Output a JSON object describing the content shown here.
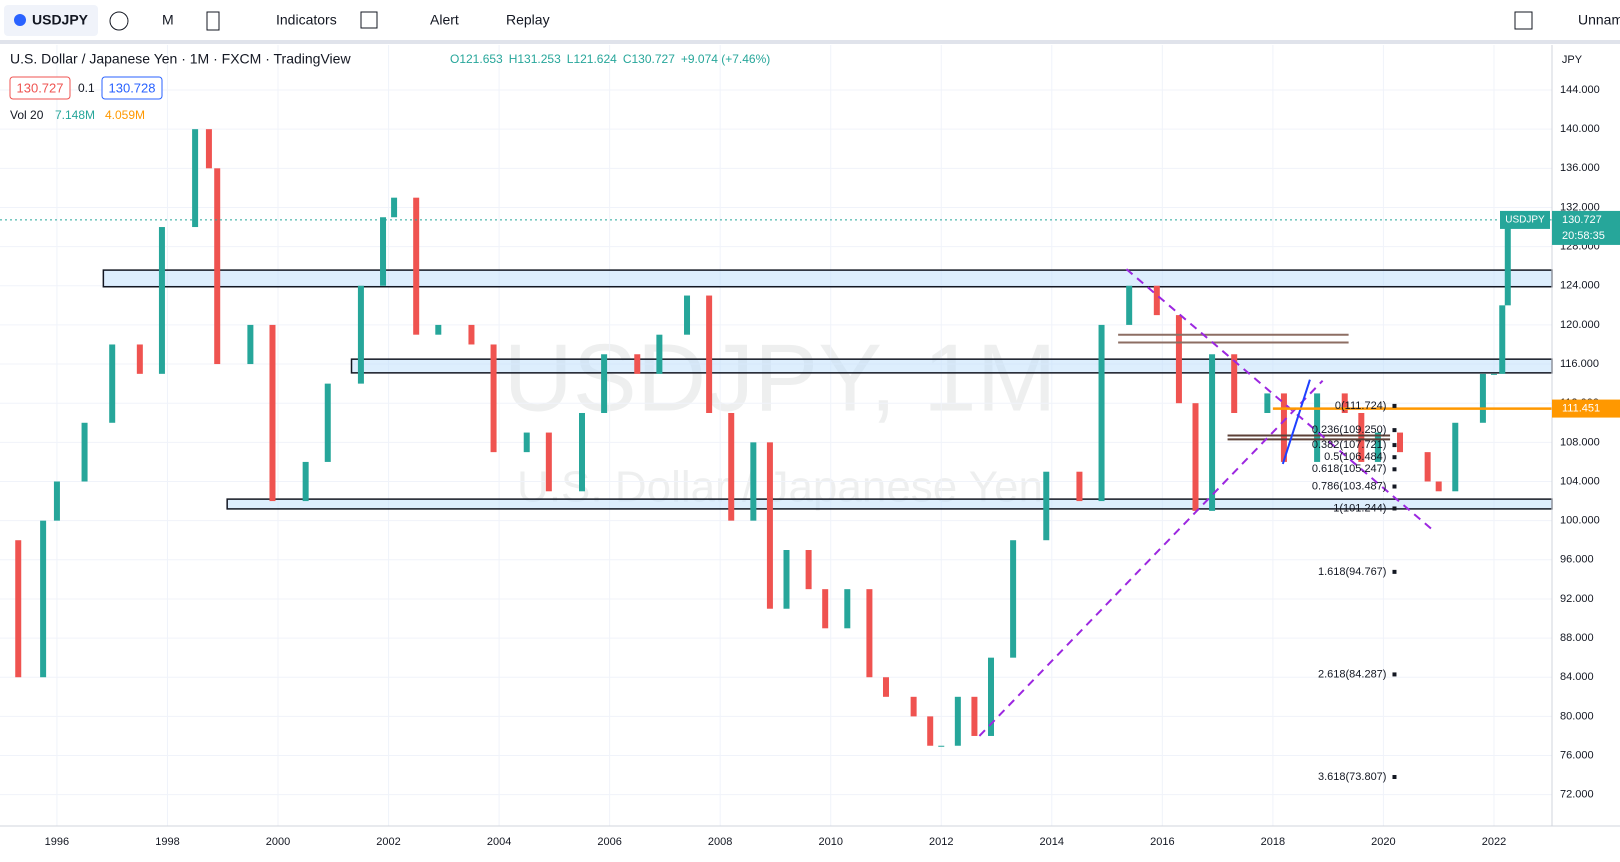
{
  "toolbar": {
    "symbol": "USDJPY",
    "interval": "M",
    "indicators": "Indicators",
    "alert": "Alert",
    "replay": "Replay",
    "layout_name": "Unnam"
  },
  "chart_data": {
    "type": "candlestick",
    "title": "U.S. Dollar / Japanese Yen · 1M · FXCM · TradingView",
    "ohlc_labels": [
      "O121.653",
      "H131.253",
      "L121.624",
      "C130.727",
      "+9.074 (+7.46%)"
    ],
    "bid": "130.727",
    "spread": "0.1",
    "ask": "130.728",
    "volume_label": "Vol 20",
    "volume_values": [
      "7.148M",
      "4.059M"
    ],
    "watermark": "USDJPY, 1M",
    "watermark_sub": "U.S. Dollar / Japanese Yen",
    "currency": "JPY",
    "last_price": 130.727,
    "last_symbol": "USDJPY",
    "countdown": "20:58:35",
    "x": [
      1995.0,
      1995.3,
      1995.75,
      1996.0,
      1996.5,
      1997.0,
      1997.5,
      1997.9,
      1998.5,
      1998.75,
      1998.9,
      1999.5,
      1999.9,
      2000.5,
      2000.9,
      2001.5,
      2001.9,
      2002.1,
      2002.5,
      2002.9,
      2003.5,
      2003.9,
      2004.5,
      2004.9,
      2005.5,
      2005.9,
      2006.5,
      2006.9,
      2007.4,
      2007.8,
      2008.2,
      2008.6,
      2008.9,
      2009.2,
      2009.6,
      2009.9,
      2010.3,
      2010.7,
      2011.0,
      2011.5,
      2011.8,
      2012.0,
      2012.3,
      2012.6,
      2012.9,
      2013.3,
      2013.9,
      2014.5,
      2014.9,
      2015.4,
      2015.9,
      2016.3,
      2016.6,
      2016.9,
      2017.3,
      2017.9,
      2018.2,
      2018.8,
      2019.3,
      2019.6,
      2019.9,
      2020.3,
      2020.8,
      2021.0,
      2021.3,
      2021.8,
      2022.0,
      2022.15,
      2022.25
    ],
    "values": [
      98,
      84,
      100,
      104,
      110,
      118,
      115,
      130,
      140,
      136,
      116,
      120,
      102,
      106,
      114,
      124,
      131,
      133,
      119,
      120,
      118,
      107,
      109,
      103,
      111,
      117,
      115,
      119,
      123,
      111,
      100,
      108,
      91,
      97,
      93,
      89,
      93,
      84,
      82,
      80,
      77,
      77,
      82,
      78,
      86,
      98,
      105,
      102,
      120,
      124,
      121,
      112,
      101,
      117,
      111,
      113,
      106,
      113,
      111,
      106,
      109,
      107,
      104,
      103,
      110,
      115,
      115,
      122,
      130.727
    ],
    "up_color": "#26a69a",
    "down_color": "#ef5350",
    "xlim": [
      1994.97,
      2023.05
    ],
    "xticks": [
      1996,
      1998,
      2000,
      2002,
      2004,
      2006,
      2008,
      2010,
      2012,
      2014,
      2016,
      2018,
      2020,
      2022
    ],
    "ylim": [
      68.8,
      148.6
    ],
    "yticks": [
      {
        "value": 72,
        "label": "72.000"
      },
      {
        "value": 76,
        "label": "76.000"
      },
      {
        "value": 80,
        "label": "80.000"
      },
      {
        "value": 84,
        "label": "84.000"
      },
      {
        "value": 88,
        "label": "88.000"
      },
      {
        "value": 92,
        "label": "92.000"
      },
      {
        "value": 96,
        "label": "96.000"
      },
      {
        "value": 100,
        "label": "100.000"
      },
      {
        "value": 104,
        "label": "104.000"
      },
      {
        "value": 108,
        "label": "108.000"
      },
      {
        "value": 112,
        "label": "112.000"
      },
      {
        "value": 116,
        "label": "116.000"
      },
      {
        "value": 120,
        "label": "120.000"
      },
      {
        "value": 124,
        "label": "124.000"
      },
      {
        "value": 128,
        "label": "128.000"
      },
      {
        "value": 132,
        "label": "132.000"
      },
      {
        "value": 136,
        "label": "136.000"
      },
      {
        "value": 140,
        "label": "140.000"
      },
      {
        "value": 144,
        "label": "144.000"
      }
    ],
    "zones": [
      {
        "x0": 1996.84,
        "low": 123.9,
        "high": 125.6
      },
      {
        "x0": 2001.33,
        "low": 115.1,
        "high": 116.5
      },
      {
        "x0": 1999.08,
        "low": 101.2,
        "high": 102.2
      }
    ],
    "segments": [
      {
        "x": [
          2015.2,
          2019.37
        ],
        "y": [
          119,
          119
        ],
        "color": "#8d6e63"
      },
      {
        "x": [
          2015.2,
          2019.37
        ],
        "y": [
          118.2,
          118.2
        ],
        "color": "#8d6e63"
      },
      {
        "x": [
          2017.18,
          2020.12
        ],
        "y": [
          108.7,
          108.7
        ],
        "color": "#5d4037"
      },
      {
        "x": [
          2017.18,
          2020.12
        ],
        "y": [
          108.3,
          108.3
        ],
        "color": "#5d4037"
      },
      {
        "x": [
          2012.69,
          2018.9
        ],
        "y": [
          78,
          114.3
        ],
        "color": "#9c27e0",
        "dashed": true
      },
      {
        "x": [
          2015.35,
          2020.86
        ],
        "y": [
          125.7,
          99.2
        ],
        "color": "#9c27e0",
        "dashed": true
      },
      {
        "x": [
          2018.18,
          2018.67
        ],
        "y": [
          105.8,
          114.4
        ],
        "color": "#1e40ff"
      }
    ],
    "orange_level": {
      "x0": 2018.0,
      "value": 111.451,
      "color": "#ff9800"
    },
    "fib_x": 2020.2,
    "fib": [
      {
        "label": "0(111.724)",
        "value": 111.724
      },
      {
        "label": "0.236(109.250)",
        "value": 109.25
      },
      {
        "label": "0.382(107.721)",
        "value": 107.721
      },
      {
        "label": "0.5(106.484)",
        "value": 106.484
      },
      {
        "label": "0.618(105.247)",
        "value": 105.247
      },
      {
        "label": "0.786(103.487)",
        "value": 103.487
      },
      {
        "label": "1(101.244)",
        "value": 101.244
      },
      {
        "label": "1.618(94.767)",
        "value": 94.767
      },
      {
        "label": "2.618(84.287)",
        "value": 84.287
      },
      {
        "label": "3.618(73.807)",
        "value": 73.807
      }
    ]
  }
}
